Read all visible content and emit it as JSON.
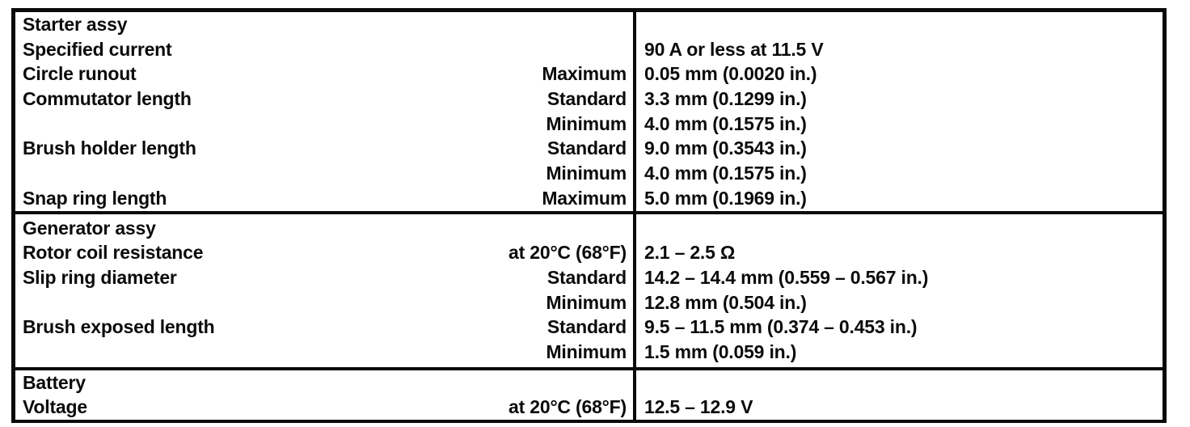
{
  "colors": {
    "background": "#ffffff",
    "border": "#0a0a0a",
    "text": "#0b0b0b"
  },
  "table": {
    "columns": [
      "item",
      "condition",
      "specification"
    ],
    "sections": [
      {
        "name": "starter-assy",
        "title": "Starter assy",
        "rows": [
          {
            "label": "Starter assy",
            "condition": "",
            "value": ""
          },
          {
            "label": "Specified current",
            "condition": "",
            "value": "90 A or less at 11.5 V"
          },
          {
            "label": "Circle runout",
            "condition": "Maximum",
            "value": "0.05 mm (0.0020 in.)"
          },
          {
            "label": "Commutator length",
            "condition": "Standard",
            "value": "3.3 mm (0.1299 in.)"
          },
          {
            "label": "",
            "condition": "Minimum",
            "value": "4.0 mm (0.1575 in.)"
          },
          {
            "label": "Brush holder length",
            "condition": "Standard",
            "value": "9.0 mm (0.3543 in.)"
          },
          {
            "label": "",
            "condition": "Minimum",
            "value": "4.0 mm (0.1575 in.)"
          },
          {
            "label": "Snap ring length",
            "condition": "Maximum",
            "value": "5.0 mm (0.1969 in.)"
          }
        ]
      },
      {
        "name": "generator-assy",
        "title": "Generator assy",
        "rows": [
          {
            "label": "Generator assy",
            "condition": "",
            "value": ""
          },
          {
            "label": "Rotor coil resistance",
            "condition": "at 20°C (68°F)",
            "value": "2.1 – 2.5 Ω"
          },
          {
            "label": "Slip ring diameter",
            "condition": "Standard",
            "value": "14.2 – 14.4 mm (0.559 – 0.567 in.)"
          },
          {
            "label": "",
            "condition": "Minimum",
            "value": "12.8 mm (0.504 in.)"
          },
          {
            "label": "Brush exposed length",
            "condition": "Standard",
            "value": "9.5 – 11.5 mm (0.374 – 0.453 in.)"
          },
          {
            "label": "",
            "condition": "Minimum",
            "value": "1.5 mm (0.059 in.)"
          }
        ]
      },
      {
        "name": "battery",
        "title": "Battery",
        "rows": [
          {
            "label": "Battery",
            "condition": "",
            "value": ""
          },
          {
            "label": "Voltage",
            "condition": "at 20°C (68°F)",
            "value": "12.5 – 12.9 V"
          }
        ]
      }
    ]
  }
}
